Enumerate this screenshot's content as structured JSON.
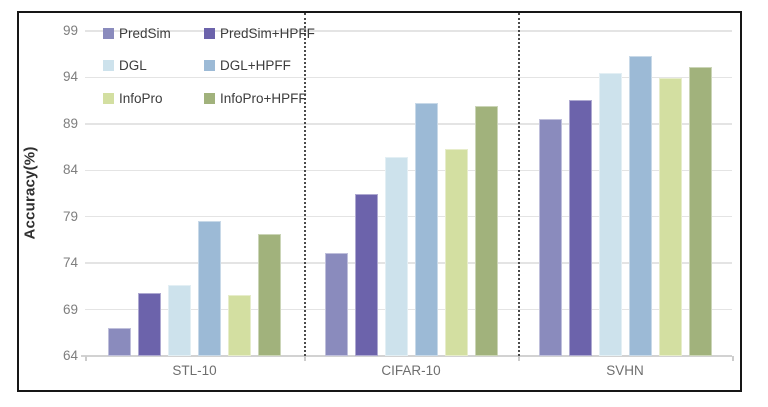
{
  "figure": {
    "background": "#ffffff",
    "border_color": "#161616"
  },
  "chart_data": {
    "type": "bar",
    "title": "",
    "xlabel": "",
    "ylabel": "Accuracy(%)",
    "ylim": [
      64,
      99
    ],
    "yticks": [
      64,
      69,
      74,
      79,
      84,
      89,
      94,
      99
    ],
    "grid": true,
    "legend_position": "top-left-inside",
    "group_separator_style": "vertical dotted lines between category groups",
    "categories": [
      "STL-10",
      "CIFAR-10",
      "SVHN"
    ],
    "series": [
      {
        "name": "PredSim",
        "color": "#8a8bbd",
        "values": [
          67.0,
          75.1,
          89.5
        ]
      },
      {
        "name": "PredSim+HPFF",
        "color": "#6c63ab",
        "values": [
          70.8,
          81.4,
          91.6
        ]
      },
      {
        "name": "DGL",
        "color": "#cde2ec",
        "values": [
          71.7,
          85.4,
          94.5
        ]
      },
      {
        "name": "DGL+HPFF",
        "color": "#9cbad6",
        "values": [
          78.5,
          91.2,
          96.3
        ]
      },
      {
        "name": "InfoPro",
        "color": "#d3dfa1",
        "values": [
          70.6,
          86.3,
          93.9
        ]
      },
      {
        "name": "InfoPro+HPFF",
        "color": "#a1b27c",
        "values": [
          77.1,
          90.9,
          95.1
        ]
      }
    ]
  }
}
